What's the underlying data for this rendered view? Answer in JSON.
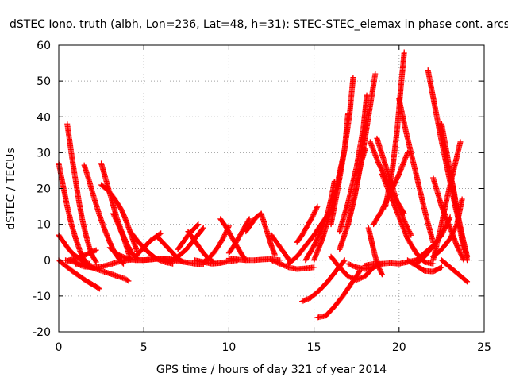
{
  "chart_data": {
    "type": "scatter",
    "title": "dSTEC Iono. truth (albh, Lon=236, Lat=48, h=31): STEC-STEC_elemax in phase cont. arcs",
    "xlabel": "GPS time / hours of day 321 of year 2014",
    "ylabel": "dSTEC  / TECUs",
    "xlim": [
      0,
      25
    ],
    "ylim": [
      -20,
      60
    ],
    "xticks": [
      0,
      5,
      10,
      15,
      20,
      25
    ],
    "yticks": [
      -20,
      -10,
      0,
      10,
      20,
      30,
      40,
      50,
      60
    ],
    "grid": true,
    "marker": "+",
    "color": "#ff0000",
    "series": [
      {
        "name": "arc1",
        "x": [
          0.0,
          0.3,
          0.6,
          0.9,
          1.2,
          1.5,
          1.8,
          2.1,
          2.4
        ],
        "y": [
          0,
          -1.2,
          -2.3,
          -3.4,
          -4.4,
          -5.4,
          -6.3,
          -7.1,
          -8.0
        ]
      },
      {
        "name": "arc2",
        "x": [
          0.0,
          0.25,
          0.5,
          0.75,
          1.0,
          1.25,
          1.5,
          1.7
        ],
        "y": [
          27,
          21,
          15,
          10,
          6,
          2.5,
          0,
          -1
        ]
      },
      {
        "name": "arc3",
        "x": [
          0.5,
          0.65,
          0.8,
          1.0,
          1.2,
          1.4,
          1.6,
          1.8,
          2.0,
          2.2
        ],
        "y": [
          38,
          33,
          28,
          22,
          16,
          11,
          7,
          3.5,
          1,
          -0.5
        ]
      },
      {
        "name": "arc4",
        "x": [
          0.0,
          0.3,
          0.6,
          0.9,
          1.2,
          1.5,
          1.8
        ],
        "y": [
          7,
          5,
          3,
          1.5,
          0.5,
          -0.5,
          -1
        ]
      },
      {
        "name": "arc5",
        "x": [
          0.4,
          0.9,
          1.4,
          1.9,
          2.4,
          2.9,
          3.4,
          3.9,
          4.1
        ],
        "y": [
          0,
          -0.5,
          -1.2,
          -2,
          -2.8,
          -3.6,
          -4.4,
          -5.2,
          -5.8
        ]
      },
      {
        "name": "arc6",
        "x": [
          0.6,
          1.0,
          1.4,
          1.8,
          2.2
        ],
        "y": [
          0,
          0.5,
          1.2,
          2,
          2.8
        ]
      },
      {
        "name": "arc7",
        "x": [
          1.5,
          1.8,
          2.1,
          2.4,
          2.7,
          3.0,
          3.3,
          3.6,
          3.8
        ],
        "y": [
          26.5,
          22,
          17,
          12.5,
          8.5,
          5,
          2,
          0,
          -1
        ]
      },
      {
        "name": "arc8",
        "x": [
          2.5,
          2.8,
          3.1,
          3.4,
          3.7,
          4.0,
          4.3,
          4.6
        ],
        "y": [
          27,
          22,
          17,
          12,
          8,
          4.5,
          2,
          0.5
        ]
      },
      {
        "name": "arc9",
        "x": [
          2.5,
          2.9,
          3.3,
          3.7,
          4.0,
          4.3,
          4.6
        ],
        "y": [
          21,
          19.5,
          17,
          14,
          10.5,
          6.5,
          2.5
        ]
      },
      {
        "name": "arc10",
        "x": [
          1.0,
          1.5,
          2.0,
          2.5,
          3.0,
          3.5,
          4.0,
          4.5,
          5.0
        ],
        "y": [
          -1,
          -1.8,
          -2,
          -1.8,
          -1.2,
          -0.5,
          0,
          0.2,
          0
        ]
      },
      {
        "name": "arc11",
        "x": [
          3.2,
          3.5,
          3.8,
          4.0,
          4.2
        ],
        "y": [
          13,
          10,
          6.5,
          3.5,
          0.5
        ]
      },
      {
        "name": "arc12",
        "x": [
          3.0,
          3.5,
          4.0,
          4.5,
          5.0,
          5.5,
          6.0,
          6.5,
          7.0
        ],
        "y": [
          3.5,
          1.5,
          0.5,
          0,
          0,
          0.2,
          0.5,
          0.3,
          0
        ]
      },
      {
        "name": "arc13",
        "x": [
          4.5,
          4.8,
          5.1,
          5.4,
          5.7,
          6.0
        ],
        "y": [
          1,
          2.5,
          4,
          5.5,
          6.5,
          7.5
        ]
      },
      {
        "name": "arc14",
        "x": [
          4.2,
          4.7,
          5.2,
          5.7,
          6.2,
          6.7
        ],
        "y": [
          8,
          5,
          2.5,
          0.5,
          -0.5,
          -1
        ]
      },
      {
        "name": "arc15",
        "x": [
          5.0,
          5.5,
          6.0,
          6.5,
          7.0,
          7.5,
          8.0,
          8.5
        ],
        "y": [
          0,
          0.3,
          0.5,
          0.2,
          -0.2,
          -0.6,
          -1,
          -1.2
        ]
      },
      {
        "name": "arc16",
        "x": [
          5.8,
          6.1,
          6.4,
          6.7,
          7.0,
          7.3
        ],
        "y": [
          6.5,
          5,
          3.5,
          2,
          0.5,
          -0.5
        ]
      },
      {
        "name": "arc17",
        "x": [
          6.5,
          7.0,
          7.5,
          8.0,
          8.5
        ],
        "y": [
          -0.5,
          1,
          3,
          6,
          9
        ]
      },
      {
        "name": "arc18",
        "x": [
          7.0,
          7.3,
          7.6,
          7.9,
          8.2
        ],
        "y": [
          3,
          5,
          7,
          8.5,
          10
        ]
      },
      {
        "name": "arc19",
        "x": [
          7.6,
          7.9,
          8.2,
          8.5,
          8.8,
          9.1
        ],
        "y": [
          8,
          6,
          4,
          2,
          0.5,
          -0.5
        ]
      },
      {
        "name": "arc20",
        "x": [
          8.0,
          8.5,
          9.0,
          9.5,
          10.0,
          10.5
        ],
        "y": [
          0,
          -0.5,
          -1,
          -0.8,
          -0.3,
          0
        ]
      },
      {
        "name": "arc21",
        "x": [
          8.5,
          8.8,
          9.1,
          9.4,
          9.7,
          10.0
        ],
        "y": [
          -0.5,
          0.5,
          2,
          4,
          6.5,
          9.5
        ]
      },
      {
        "name": "arc22",
        "x": [
          9.5,
          9.8,
          10.1,
          10.4,
          10.7,
          11.0
        ],
        "y": [
          11.5,
          9.5,
          7,
          4.5,
          2,
          0
        ]
      },
      {
        "name": "arc23",
        "x": [
          10.0,
          10.5,
          11.0,
          11.5,
          12.0,
          12.5,
          13.0
        ],
        "y": [
          0.5,
          0.2,
          0,
          0,
          0.2,
          0.3,
          0
        ]
      },
      {
        "name": "arc24",
        "x": [
          10.0,
          10.3,
          10.6,
          10.9,
          11.2
        ],
        "y": [
          2,
          4,
          6.5,
          9,
          11.5
        ]
      },
      {
        "name": "arc25",
        "x": [
          11.0,
          11.3,
          11.6,
          11.9
        ],
        "y": [
          8,
          10,
          12,
          13
        ]
      },
      {
        "name": "arc26",
        "x": [
          11.9,
          12.1,
          12.3,
          12.5,
          12.7
        ],
        "y": [
          13,
          10,
          7,
          4,
          1.5
        ]
      },
      {
        "name": "arc27",
        "x": [
          12.5,
          12.8,
          13.1,
          13.4,
          13.6
        ],
        "y": [
          7,
          5,
          3,
          1,
          -0.5
        ]
      },
      {
        "name": "arc28",
        "x": [
          12.5,
          13.0,
          13.5,
          14.0,
          14.5,
          15.0
        ],
        "y": [
          0,
          -1,
          -2,
          -2.5,
          -2.3,
          -2
        ]
      },
      {
        "name": "arc29",
        "x": [
          13.5,
          14.0,
          14.5,
          15.0,
          15.5,
          16.0
        ],
        "y": [
          -1,
          1,
          4,
          7,
          10.5,
          14
        ]
      },
      {
        "name": "arc30",
        "x": [
          14.0,
          14.3,
          14.6,
          14.9,
          15.2
        ],
        "y": [
          5,
          7,
          9.5,
          12,
          15
        ]
      },
      {
        "name": "arc31",
        "x": [
          14.3,
          14.8,
          15.3,
          15.8,
          16.3,
          16.8
        ],
        "y": [
          -11.5,
          -10.5,
          -8.5,
          -6,
          -3,
          0
        ]
      },
      {
        "name": "arc32",
        "x": [
          15.2,
          15.7,
          16.2,
          16.7,
          17.2,
          17.7
        ],
        "y": [
          -16,
          -15.5,
          -13,
          -10,
          -6.5,
          -3
        ]
      },
      {
        "name": "arc33",
        "x": [
          14.5,
          15.0,
          15.5,
          15.8,
          16.0,
          16.2
        ],
        "y": [
          0,
          4,
          9,
          13,
          17,
          22
        ]
      },
      {
        "name": "arc34",
        "x": [
          15.0,
          15.5,
          16.0,
          16.4,
          16.8,
          17.0
        ],
        "y": [
          0,
          6,
          14,
          22,
          31,
          41
        ]
      },
      {
        "name": "arc35",
        "x": [
          16.0,
          16.4,
          16.8,
          17.1,
          17.3
        ],
        "y": [
          10,
          20,
          31,
          41,
          51
        ]
      },
      {
        "name": "arc36",
        "x": [
          16.5,
          17.0,
          17.4,
          17.7,
          18.0
        ],
        "y": [
          3,
          10,
          18,
          26,
          31
        ]
      },
      {
        "name": "arc37",
        "x": [
          16.5,
          17.0,
          17.5,
          17.9,
          18.1
        ],
        "y": [
          8,
          16,
          26,
          37,
          46
        ]
      },
      {
        "name": "arc38",
        "x": [
          17.0,
          17.4,
          17.8,
          18.2,
          18.6
        ],
        "y": [
          10,
          18,
          28,
          40,
          52
        ]
      },
      {
        "name": "arc39",
        "x": [
          16.0,
          16.5,
          17.0,
          17.5,
          18.0,
          18.5
        ],
        "y": [
          1,
          -2,
          -4.5,
          -5.5,
          -4.5,
          -2
        ]
      },
      {
        "name": "arc40",
        "x": [
          17.0,
          17.5,
          18.0,
          18.5,
          19.0
        ],
        "y": [
          -1,
          -2,
          -2.5,
          -2,
          -1
        ]
      },
      {
        "name": "arc41",
        "x": [
          18.2,
          18.4,
          18.6,
          18.8,
          19.0
        ],
        "y": [
          9,
          5,
          1,
          -2,
          -4
        ]
      },
      {
        "name": "arc42",
        "x": [
          18.0,
          18.5,
          19.0,
          19.5,
          20.0,
          20.5,
          21.0,
          21.5,
          22.0
        ],
        "y": [
          -1.5,
          -1,
          -1,
          -0.8,
          -1,
          -0.5,
          0,
          2,
          4
        ]
      },
      {
        "name": "arc43",
        "x": [
          18.3,
          18.8,
          19.3,
          19.8,
          20.3
        ],
        "y": [
          33,
          27,
          22,
          17,
          13
        ]
      },
      {
        "name": "arc44",
        "x": [
          18.7,
          19.1,
          19.5,
          19.9,
          20.3,
          20.7
        ],
        "y": [
          34,
          28,
          22,
          16,
          11,
          7
        ]
      },
      {
        "name": "arc45",
        "x": [
          18.5,
          19.0,
          19.5,
          20.0,
          20.5
        ],
        "y": [
          10,
          14,
          19,
          24,
          30
        ]
      },
      {
        "name": "arc46",
        "x": [
          19.2,
          19.6,
          19.9,
          20.1,
          20.3
        ],
        "y": [
          15,
          25,
          37,
          48,
          58
        ]
      },
      {
        "name": "arc47",
        "x": [
          20.0,
          20.4,
          20.8,
          21.2,
          21.6,
          22.0
        ],
        "y": [
          45,
          36,
          28,
          20,
          12,
          5
        ]
      },
      {
        "name": "arc48",
        "x": [
          19.0,
          19.5,
          20.0,
          20.5,
          21.0,
          21.5,
          22.0
        ],
        "y": [
          24,
          18,
          12,
          6,
          2,
          -0.5,
          -1
        ]
      },
      {
        "name": "arc49",
        "x": [
          20.5,
          21.0,
          21.5,
          22.0,
          22.5
        ],
        "y": [
          0,
          -1.5,
          -3,
          -3.2,
          -2
        ]
      },
      {
        "name": "arc50",
        "x": [
          21.0,
          21.5,
          22.0,
          22.5,
          23.0
        ],
        "y": [
          -1,
          1,
          4,
          7,
          12
        ]
      },
      {
        "name": "arc51",
        "x": [
          21.7,
          22.1,
          22.5,
          22.9,
          23.3,
          23.7,
          24.0
        ],
        "y": [
          53,
          43,
          33,
          24,
          15,
          7,
          0
        ]
      },
      {
        "name": "arc52",
        "x": [
          22.0,
          22.5,
          23.0,
          23.4,
          23.8
        ],
        "y": [
          23,
          15,
          9,
          4,
          0
        ]
      },
      {
        "name": "arc53",
        "x": [
          22.0,
          22.4,
          22.8,
          23.2,
          23.6
        ],
        "y": [
          0,
          8,
          17,
          25,
          33
        ]
      },
      {
        "name": "arc54",
        "x": [
          22.5,
          22.8,
          23.1,
          23.4,
          23.7,
          24.0
        ],
        "y": [
          38,
          30,
          22,
          14,
          7,
          1
        ]
      },
      {
        "name": "arc55",
        "x": [
          23.0,
          23.2,
          23.4,
          23.6,
          23.8
        ],
        "y": [
          24,
          20,
          14,
          8,
          3
        ]
      },
      {
        "name": "arc56",
        "x": [
          22.5,
          23.0,
          23.5,
          24.0
        ],
        "y": [
          0,
          -2,
          -4,
          -6
        ]
      },
      {
        "name": "arc57",
        "x": [
          22.0,
          22.5,
          23.0,
          23.4,
          23.7
        ],
        "y": [
          1,
          3,
          6,
          10,
          17
        ]
      }
    ]
  }
}
